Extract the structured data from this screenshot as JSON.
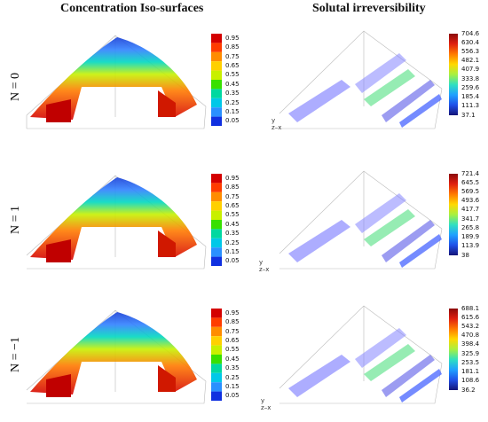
{
  "titles": {
    "left": "Concentration Iso-surfaces",
    "right": "Solutal irreversibility"
  },
  "rows": [
    {
      "label": "N = 0",
      "right_ticks": [
        "704.6",
        "630.4",
        "556.3",
        "482.1",
        "407.9",
        "333.8",
        "259.6",
        "185.4",
        "111.3",
        "37.1"
      ]
    },
    {
      "label": "N = 1",
      "right_ticks": [
        "721.4",
        "645.5",
        "569.5",
        "493.6",
        "417.7",
        "341.7",
        "265.8",
        "189.9",
        "113.9",
        "38"
      ]
    },
    {
      "label": "N = −1",
      "right_ticks": [
        "688.1",
        "615.6",
        "543.2",
        "470.8",
        "398.4",
        "325.9",
        "253.5",
        "181.1",
        "108.6",
        "36.2"
      ]
    }
  ],
  "left_ticks": [
    "0.95",
    "0.85",
    "0.75",
    "0.65",
    "0.55",
    "0.45",
    "0.35",
    "0.25",
    "0.15",
    "0.05"
  ],
  "left_colors": [
    "#d40000",
    "#ff3c00",
    "#ff8c00",
    "#ffd000",
    "#c8f000",
    "#38e000",
    "#00d8a0",
    "#00c8e8",
    "#2a90ff",
    "#1030e0"
  ],
  "right_gradient": [
    "#8b0a0a",
    "#e02010",
    "#ff7a00",
    "#ffd800",
    "#a8f040",
    "#30e0c0",
    "#20a0ff",
    "#2050e8",
    "#141478"
  ],
  "axes_labels": {
    "y": "y",
    "z": "z",
    "x": "x"
  }
}
